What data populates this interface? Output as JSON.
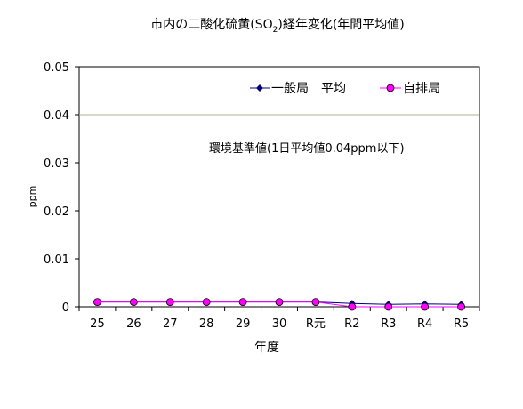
{
  "chart_data": {
    "type": "line",
    "title": "市内の二酸化硫黄(SO",
    "title_sub": "2",
    "title_end": ")経年変化(年間平均値)",
    "xlabel": "年度",
    "ylabel": "ppm",
    "categories": [
      "25",
      "26",
      "27",
      "28",
      "29",
      "30",
      "R元",
      "R2",
      "R3",
      "R4",
      "R5"
    ],
    "ylim": [
      0,
      0.05
    ],
    "yticks": [
      "0",
      "0.01",
      "0.02",
      "0.03",
      "0.04",
      "0.05"
    ],
    "grid": false,
    "legend_position": "top-right",
    "series": [
      {
        "name": "一般局　平均",
        "color": "#000080",
        "marker": "diamond",
        "values": [
          0.001,
          0.001,
          0.001,
          0.001,
          0.001,
          0.001,
          0.001,
          0.0007,
          0.0005,
          0.0006,
          0.0005
        ]
      },
      {
        "name": "自排局",
        "color": "#ff00ff",
        "marker": "circle",
        "values": [
          0.001,
          0.001,
          0.001,
          0.001,
          0.001,
          0.001,
          0.001,
          0.0,
          0.0,
          0.0,
          0.0
        ]
      }
    ],
    "reference_line": {
      "value": 0.04,
      "color": "#b0b090",
      "label": "環境基準値(1日平均値0.04ppm以下)"
    }
  }
}
